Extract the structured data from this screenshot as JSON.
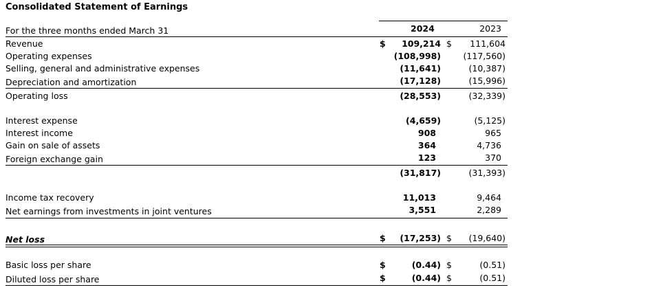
{
  "title": "Consolidated Statement of Earnings",
  "period_label": "For the three months ended March 31",
  "columns": [
    "2024",
    "2023"
  ],
  "currency_symbol": "$",
  "rows": [
    {
      "label": "Revenue",
      "v2024": "109,214",
      "v2023": "111,604"
    },
    {
      "label": "Operating expenses",
      "v2024": "(108,998)",
      "v2023": "(117,560)"
    },
    {
      "label": "Selling, general and administrative expenses",
      "v2024": "(11,641)",
      "v2023": "(10,387)"
    },
    {
      "label": "Depreciation and amortization",
      "v2024": "(17,128)",
      "v2023": "(15,996)"
    },
    {
      "label": "Operating loss",
      "v2024": "(28,553)",
      "v2023": "(32,339)"
    },
    {
      "label": "Interest expense",
      "v2024": "(4,659)",
      "v2023": "(5,125)"
    },
    {
      "label": "Interest income",
      "v2024": "908",
      "v2023": "965"
    },
    {
      "label": "Gain on sale of assets",
      "v2024": "364",
      "v2023": "4,736"
    },
    {
      "label": "Foreign exchange gain",
      "v2024": "123",
      "v2023": "370"
    },
    {
      "label": "",
      "v2024": "(31,817)",
      "v2023": "(31,393)"
    },
    {
      "label": "Income tax recovery",
      "v2024": "11,013",
      "v2023": "9,464"
    },
    {
      "label": "Net earnings from investments in joint ventures",
      "v2024": "3,551",
      "v2023": "2,289"
    },
    {
      "label": "Net loss",
      "v2024": "(17,253)",
      "v2023": "(19,640)"
    },
    {
      "label": "Basic loss per share",
      "v2024": "(0.44)",
      "v2023": "(0.51)"
    },
    {
      "label": "Diluted loss per share",
      "v2024": "(0.44)",
      "v2023": "(0.51)"
    }
  ]
}
